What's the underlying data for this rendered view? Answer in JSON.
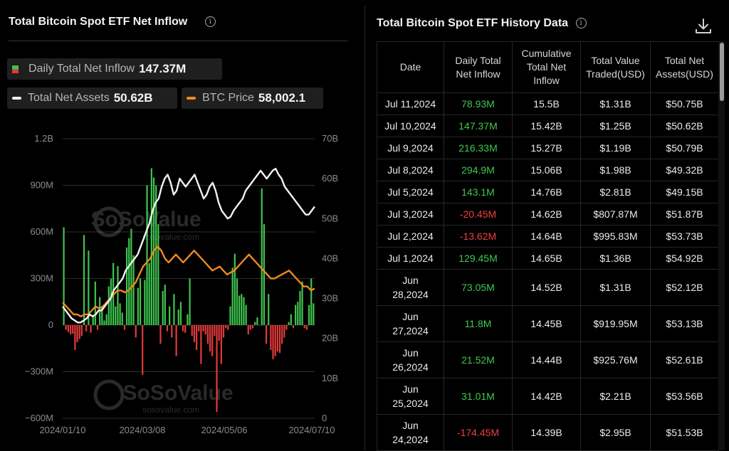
{
  "inflow_panel": {
    "title": "Total Bitcoin Spot ETF Net Inflow",
    "legend": {
      "inflow_label": "Daily Total Net Inflow",
      "inflow_value": "147.37M",
      "assets_label": "Total Net Assets",
      "assets_value": "50.62B",
      "btc_label": "BTC Price",
      "btc_value": "58,002.1"
    },
    "watermark": {
      "brand": "SoSoValue",
      "site": "sosovalue.com"
    }
  },
  "history_panel": {
    "title": "Total Bitcoin Spot ETF History Data",
    "columns": {
      "date": "Date",
      "inflow_l1": "Daily Total",
      "inflow_l2": "Net Inflow",
      "cum_l1": "Cumulative",
      "cum_l2": "Total Net",
      "cum_l3": "Inflow",
      "traded_l1": "Total Value",
      "traded_l2": "Traded(USD)",
      "assets_l1": "Total Net",
      "assets_l2": "Assets(USD)"
    },
    "rows": [
      {
        "d1": "Jul 11,2024",
        "d2": "",
        "inflow": "78.93M",
        "cum": "15.5B",
        "traded": "$1.31B",
        "assets": "$50.75B",
        "sign": "pos"
      },
      {
        "d1": "Jul 10,2024",
        "d2": "",
        "inflow": "147.37M",
        "cum": "15.42B",
        "traded": "$1.25B",
        "assets": "$50.62B",
        "sign": "pos"
      },
      {
        "d1": "Jul 9,2024",
        "d2": "",
        "inflow": "216.33M",
        "cum": "15.27B",
        "traded": "$1.19B",
        "assets": "$50.79B",
        "sign": "pos"
      },
      {
        "d1": "Jul 8,2024",
        "d2": "",
        "inflow": "294.9M",
        "cum": "15.06B",
        "traded": "$1.98B",
        "assets": "$49.32B",
        "sign": "pos"
      },
      {
        "d1": "Jul 5,2024",
        "d2": "",
        "inflow": "143.1M",
        "cum": "14.76B",
        "traded": "$2.81B",
        "assets": "$49.15B",
        "sign": "pos"
      },
      {
        "d1": "Jul 3,2024",
        "d2": "",
        "inflow": "-20.45M",
        "cum": "14.62B",
        "traded": "$807.87M",
        "assets": "$51.87B",
        "sign": "neg"
      },
      {
        "d1": "Jul 2,2024",
        "d2": "",
        "inflow": "-13.62M",
        "cum": "14.64B",
        "traded": "$995.83M",
        "assets": "$53.73B",
        "sign": "neg"
      },
      {
        "d1": "Jul 1,2024",
        "d2": "",
        "inflow": "129.45M",
        "cum": "14.65B",
        "traded": "$1.36B",
        "assets": "$54.92B",
        "sign": "pos"
      },
      {
        "d1": "Jun",
        "d2": "28,2024",
        "inflow": "73.05M",
        "cum": "14.52B",
        "traded": "$1.31B",
        "assets": "$52.12B",
        "sign": "pos"
      },
      {
        "d1": "Jun",
        "d2": "27,2024",
        "inflow": "11.8M",
        "cum": "14.45B",
        "traded": "$919.95M",
        "assets": "$53.13B",
        "sign": "pos"
      },
      {
        "d1": "Jun",
        "d2": "26,2024",
        "inflow": "21.52M",
        "cum": "14.44B",
        "traded": "$925.76M",
        "assets": "$52.61B",
        "sign": "pos"
      },
      {
        "d1": "Jun",
        "d2": "25,2024",
        "inflow": "31.01M",
        "cum": "14.42B",
        "traded": "$2.21B",
        "assets": "$53.56B",
        "sign": "pos"
      },
      {
        "d1": "Jun",
        "d2": "24,2024",
        "inflow": "-174.45M",
        "cum": "14.39B",
        "traded": "$2.95B",
        "assets": "$51.53B",
        "sign": "neg"
      }
    ]
  },
  "colors": {
    "inflow_pos": "#3ec44e",
    "inflow_neg": "#e23a3a",
    "assets_line": "#f2f2f2",
    "btc_line": "#f08a1c",
    "gridline": "#2e2e2e"
  },
  "chart_data": {
    "type": "bar+line",
    "x_ticks": [
      "2024/01/10",
      "2024/03/08",
      "2024/05/06",
      "2024/07/10"
    ],
    "y_left": {
      "ticks": [
        "1.2B",
        "900M",
        "600M",
        "300M",
        "0",
        "−300M",
        "−600M"
      ],
      "range": [
        -600,
        1200
      ],
      "unit": "M"
    },
    "y_right": {
      "ticks": [
        "70B",
        "60B",
        "50B",
        "40B",
        "30B",
        "20B",
        "10B",
        "0"
      ],
      "range": [
        0,
        70
      ],
      "unit": "B"
    },
    "grid": "horizontal",
    "series": [
      {
        "name": "Daily Total Net Inflow",
        "kind": "bar",
        "values": [
          630,
          -30,
          -45,
          -60,
          -55,
          -160,
          -110,
          -90,
          -70,
          580,
          -40,
          480,
          -50,
          60,
          280,
          -30,
          180,
          120,
          30,
          70,
          250,
          300,
          400,
          120,
          380,
          140,
          80,
          -30,
          500,
          560,
          620,
          450,
          -80,
          240,
          300,
          -320,
          290,
          900,
          400,
          1010,
          950,
          900,
          650,
          -120,
          220,
          260,
          -40,
          120,
          -80,
          200,
          -200,
          100,
          150,
          -40,
          -50,
          70,
          300,
          -70,
          -110,
          -160,
          -40,
          -250,
          -40,
          -60,
          -120,
          -170,
          -200,
          -70,
          -560,
          -100,
          -250,
          -80,
          -20,
          -30,
          120,
          370,
          460,
          300,
          190,
          200,
          180,
          130,
          -60,
          -30,
          -20,
          20,
          50,
          0,
          880,
          650,
          -120,
          200,
          -160,
          -220,
          -200,
          -170,
          -180,
          -120,
          -80,
          -30,
          20,
          70,
          -20,
          130,
          150,
          220,
          280,
          -20,
          -30,
          130,
          300,
          140
        ],
        "unit": "M"
      },
      {
        "name": "Total Net Assets",
        "kind": "line",
        "axis": "right",
        "values": [
          28,
          27,
          26,
          25,
          24.5,
          24,
          24,
          24.5,
          25,
          26,
          25.5,
          26,
          27,
          27,
          28,
          29,
          30,
          32,
          33,
          34,
          35,
          37,
          38,
          39,
          40,
          41,
          43,
          45,
          47,
          49,
          52,
          54,
          55,
          58,
          60,
          61,
          59,
          56,
          57,
          60,
          59,
          58,
          59,
          60,
          61,
          59,
          57,
          55,
          56,
          58,
          59,
          57,
          54,
          52,
          51,
          50,
          50.5,
          52,
          53,
          54,
          55,
          57,
          58,
          59,
          60,
          61,
          62,
          61,
          60,
          61,
          62,
          62.5,
          61,
          60,
          58,
          57,
          56,
          55,
          54,
          53,
          52,
          51,
          51,
          52,
          53
        ],
        "unit": "B"
      },
      {
        "name": "BTC Price",
        "kind": "line",
        "axis": "right",
        "values": [
          29,
          28,
          27,
          26,
          26,
          25.5,
          26,
          26,
          27,
          28,
          27.5,
          28,
          29,
          30,
          31,
          32,
          32,
          31.5,
          32,
          33,
          34,
          36,
          38,
          39,
          40,
          42,
          43,
          42,
          40,
          39,
          40,
          41,
          40,
          39,
          40,
          41,
          42,
          41,
          40,
          39,
          38,
          37,
          37.5,
          38,
          37,
          36,
          36.5,
          37,
          38,
          39,
          40,
          41,
          40,
          39,
          38,
          37,
          36,
          35,
          35,
          35.5,
          36,
          36.5,
          37,
          36,
          35,
          34,
          33,
          33,
          32,
          32.5
        ],
        "unit": "B-axis"
      }
    ]
  }
}
